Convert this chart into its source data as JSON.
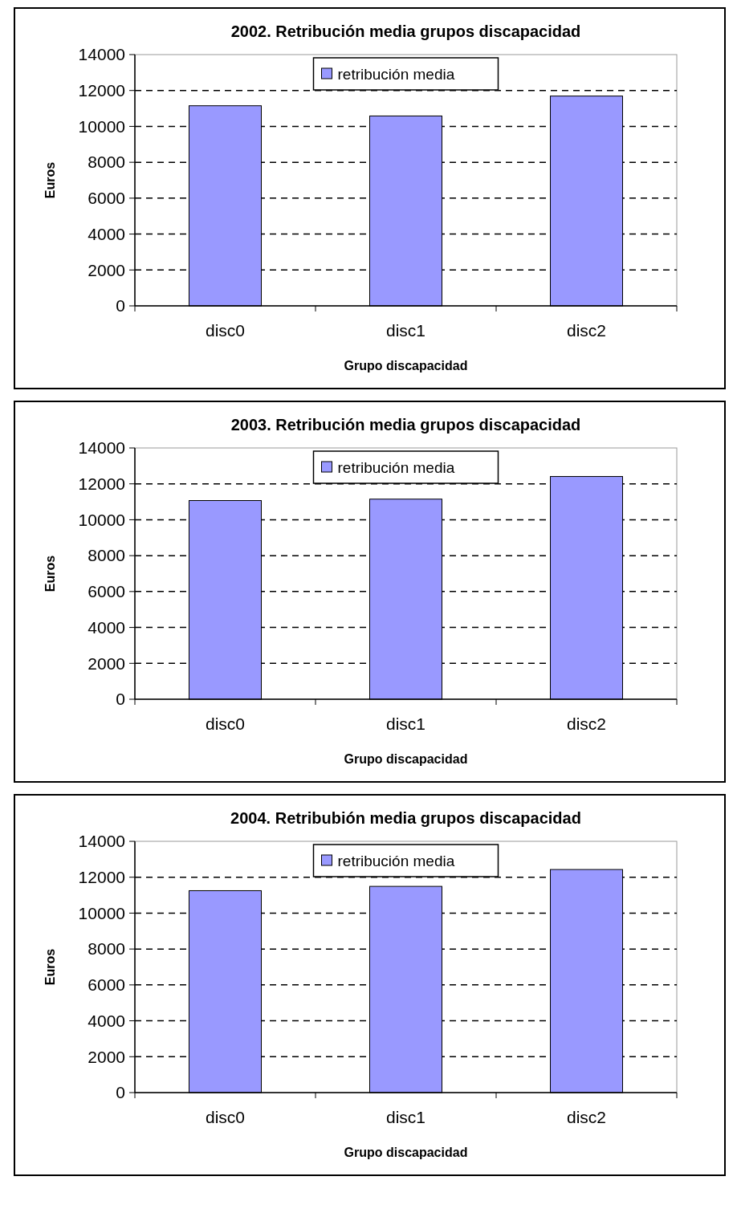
{
  "chart_data": [
    {
      "type": "bar",
      "title": "2002. Retribución media grupos discapacidad",
      "xlabel": "Grupo discapacidad",
      "ylabel": "Euros",
      "categories": [
        "disc0",
        "disc1",
        "disc2"
      ],
      "series": [
        {
          "name": "retribución media",
          "color": "#9999ff",
          "values": [
            11150,
            10580,
            11690
          ]
        }
      ],
      "ylim": [
        0,
        14000
      ],
      "yticks": [
        0,
        2000,
        4000,
        6000,
        8000,
        10000,
        12000,
        14000
      ],
      "grid": "y",
      "line_style": "dashed",
      "legend": "top"
    },
    {
      "type": "bar",
      "title": "2003. Retribución media grupos discapacidad",
      "xlabel": "Grupo discapacidad",
      "ylabel": "Euros",
      "categories": [
        "disc0",
        "disc1",
        "disc2"
      ],
      "series": [
        {
          "name": "retribución media",
          "color": "#9999ff",
          "values": [
            11070,
            11150,
            12410
          ]
        }
      ],
      "ylim": [
        0,
        14000
      ],
      "yticks": [
        0,
        2000,
        4000,
        6000,
        8000,
        10000,
        12000,
        14000
      ],
      "grid": "y",
      "line_style": "dashed",
      "legend": "top"
    },
    {
      "type": "bar",
      "title": "2004. Retribubión media grupos discapacidad",
      "xlabel": "Grupo discapacidad",
      "ylabel": "Euros",
      "categories": [
        "disc0",
        "disc1",
        "disc2"
      ],
      "series": [
        {
          "name": "retribución media",
          "color": "#9999ff",
          "values": [
            11250,
            11490,
            12430
          ]
        }
      ],
      "ylim": [
        0,
        14000
      ],
      "yticks": [
        0,
        2000,
        4000,
        6000,
        8000,
        10000,
        12000,
        14000
      ],
      "grid": "y",
      "line_style": "dashed",
      "legend": "top"
    }
  ]
}
